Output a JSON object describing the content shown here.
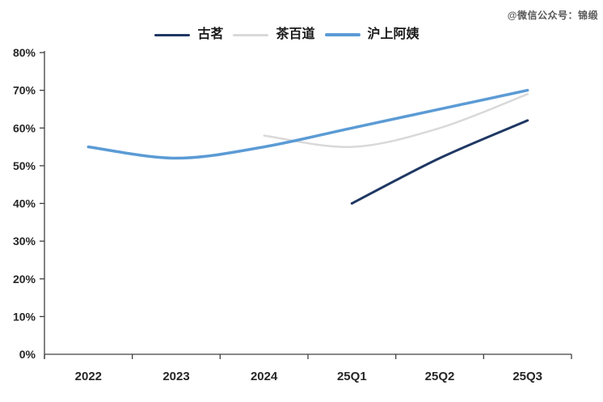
{
  "watermark": "@微信公众号：锦缎",
  "colors": {
    "axis": "#404040",
    "tick_label": "#262626",
    "watermark": "#595959",
    "background": "#ffffff"
  },
  "legend": {
    "items": [
      {
        "label": "古茗"
      },
      {
        "label": "茶百道"
      },
      {
        "label": "沪上阿姨"
      }
    ]
  },
  "chart_data": {
    "type": "line",
    "title": "",
    "xlabel": "",
    "ylabel": "",
    "categories": [
      "2022",
      "2023",
      "2024",
      "25Q1",
      "25Q2",
      "25Q3"
    ],
    "series": [
      {
        "name": "古茗",
        "color": "#1F3864",
        "stroke_width": 3,
        "values": [
          null,
          null,
          null,
          40,
          52,
          62
        ]
      },
      {
        "name": "茶百道",
        "color": "#D9D9D9",
        "stroke_width": 2.5,
        "values": [
          null,
          null,
          58,
          55,
          60,
          69
        ]
      },
      {
        "name": "沪上阿姨",
        "color": "#5B9BD5",
        "stroke_width": 3.5,
        "values": [
          55,
          52,
          55,
          60,
          65,
          70
        ]
      }
    ],
    "ylim": [
      0,
      80
    ],
    "yticks": [
      0,
      10,
      20,
      30,
      40,
      50,
      60,
      70,
      80
    ],
    "yticklabels": [
      "0%",
      "10%",
      "20%",
      "30%",
      "40%",
      "50%",
      "60%",
      "70%",
      "80%"
    ],
    "grid": false,
    "smooth": true,
    "legend_position": "top"
  }
}
